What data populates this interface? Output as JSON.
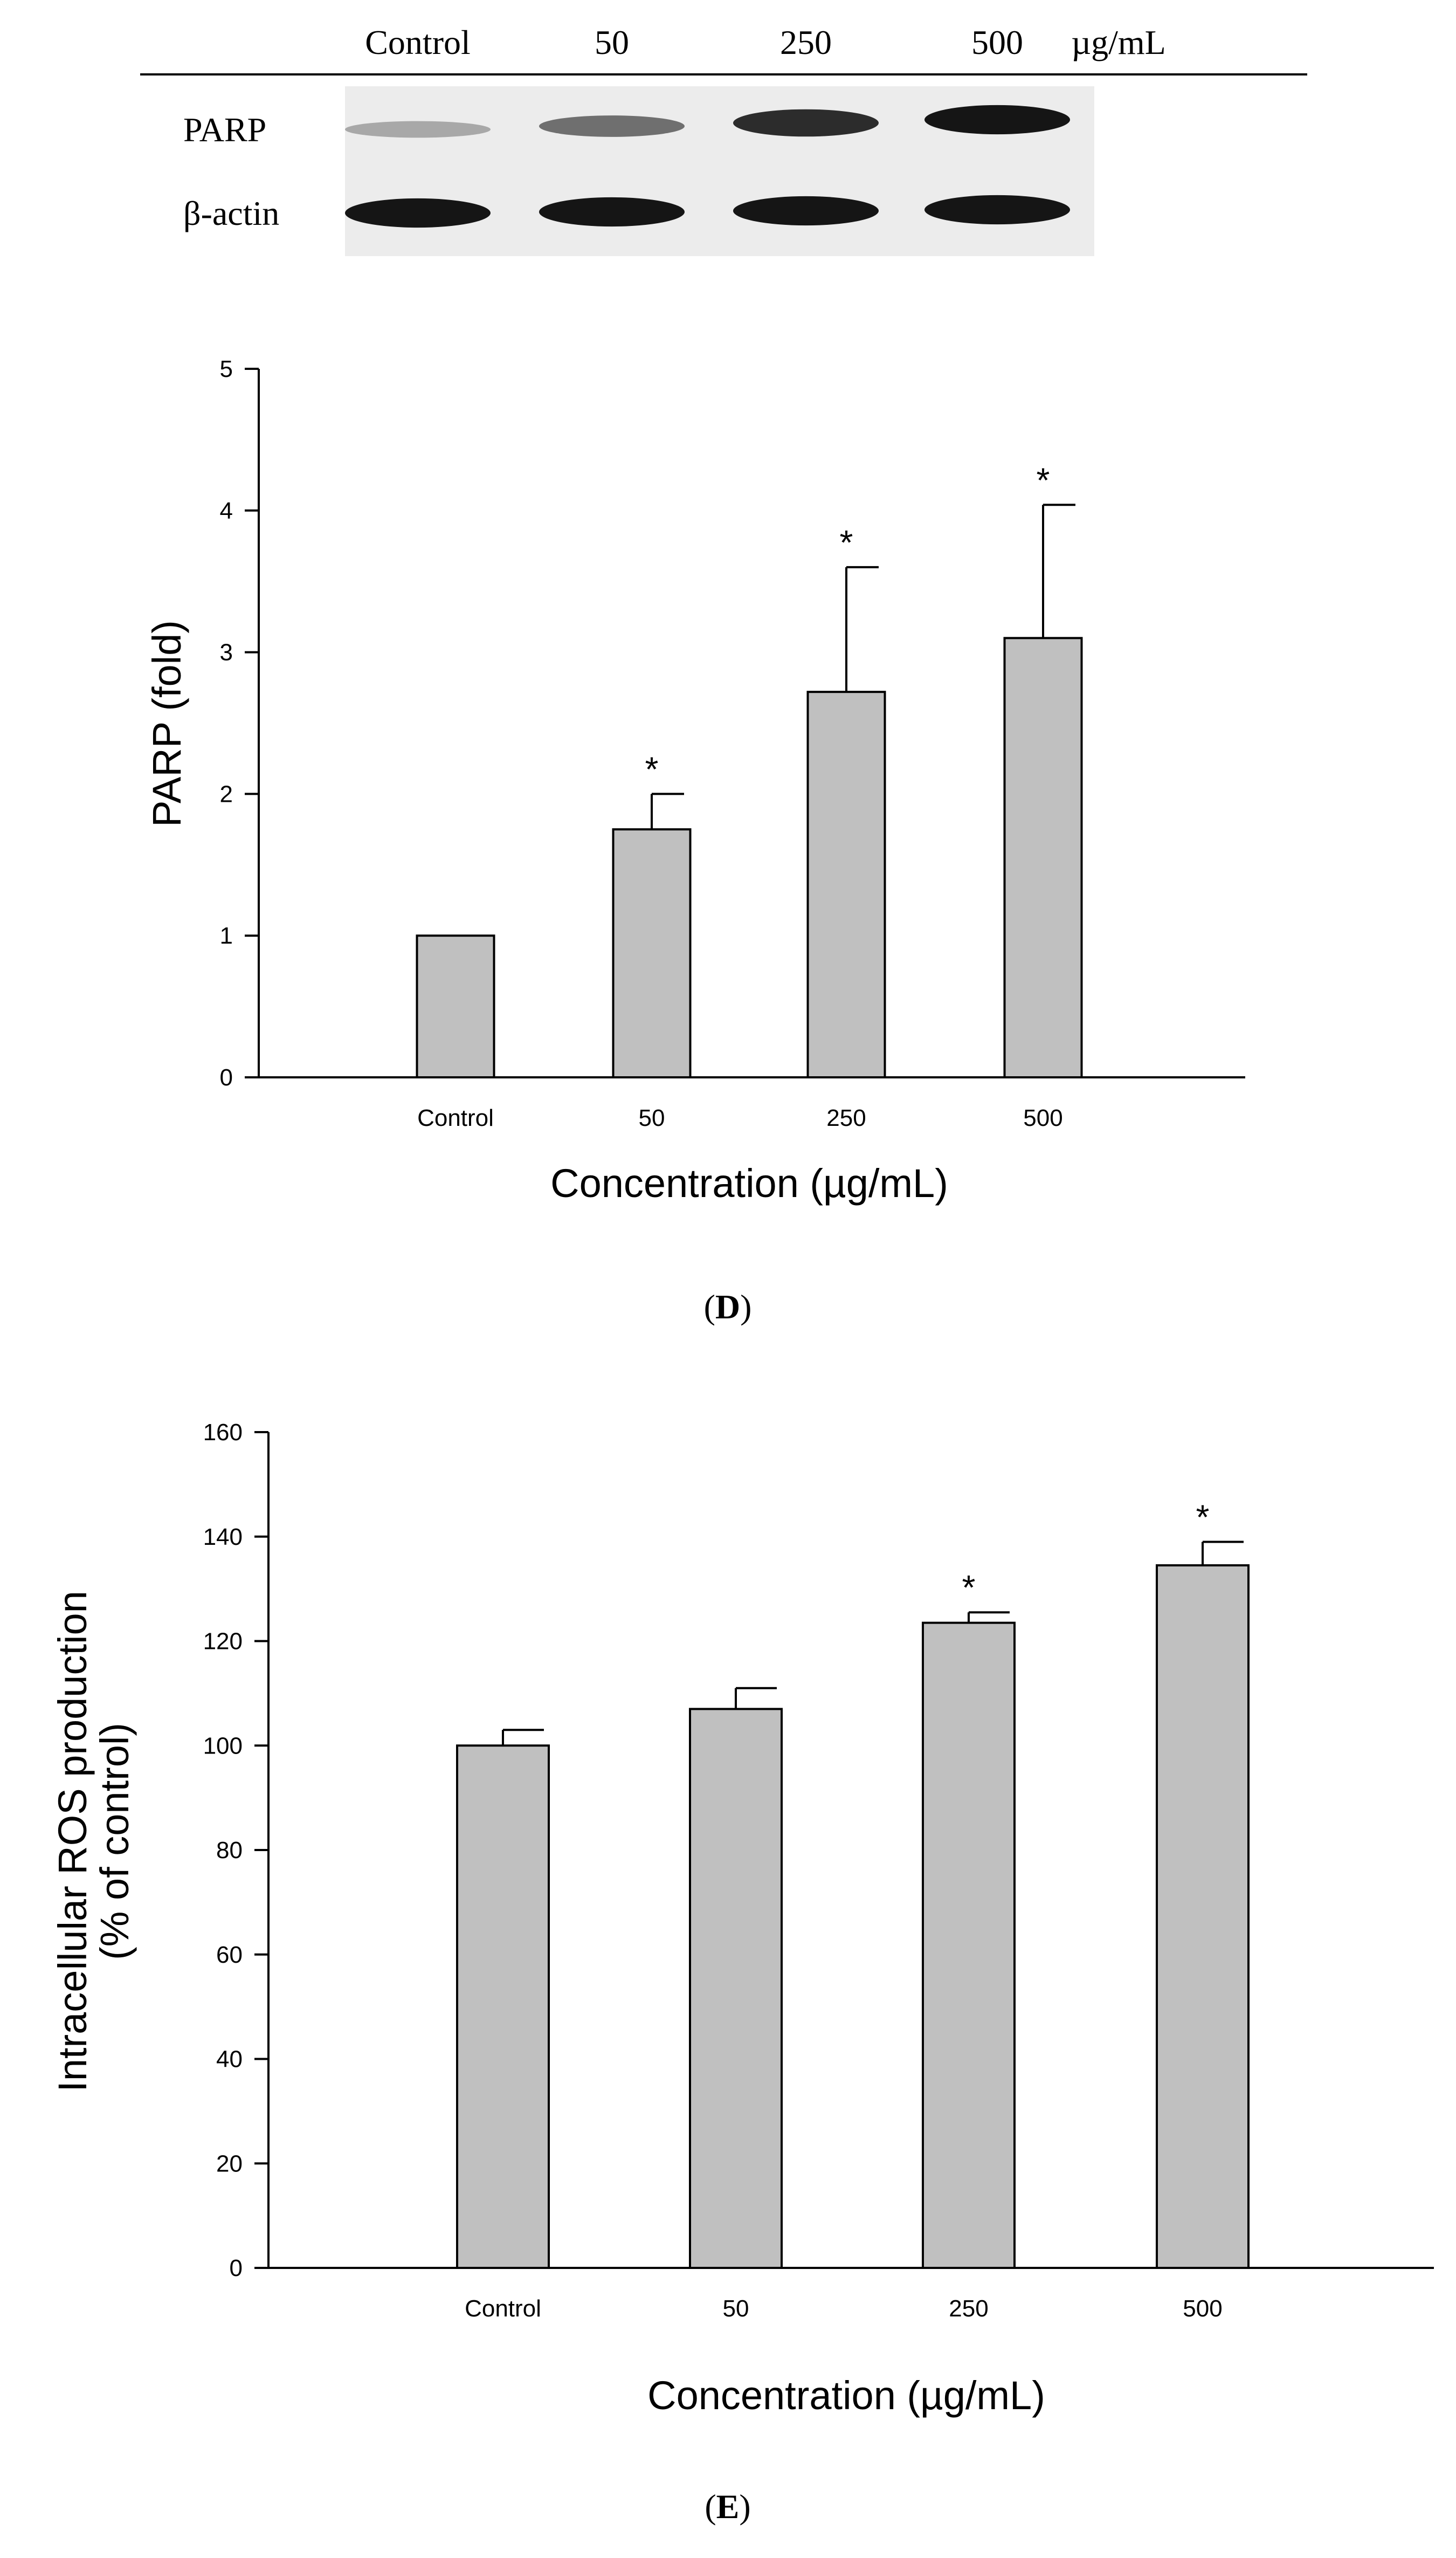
{
  "blot": {
    "lanes": [
      "Control",
      "50",
      "250",
      "500"
    ],
    "unit": "µg/mL",
    "rows": [
      {
        "label": "PARP",
        "intensity": [
          0.3,
          0.55,
          0.85,
          0.95
        ]
      },
      {
        "label": "β-actin",
        "intensity": [
          0.95,
          0.95,
          0.95,
          0.95
        ]
      }
    ]
  },
  "panel_d_label": "D",
  "panel_e_label": "E",
  "chart_data": [
    {
      "type": "bar",
      "panel": "D",
      "categories": [
        "Control",
        "50",
        "250",
        "500"
      ],
      "values": [
        1.0,
        1.75,
        2.72,
        3.1
      ],
      "errors": [
        0.0,
        0.25,
        0.88,
        0.94
      ],
      "significant": [
        false,
        true,
        true,
        true
      ],
      "significance_mark": "*",
      "xlabel": "Concentration (µg/mL)",
      "ylabel": "PARP (fold)",
      "ylim": [
        0,
        5
      ],
      "yticks": [
        "0",
        "1",
        "2",
        "3",
        "4",
        "5"
      ],
      "bar_color": "#c0c0c0"
    },
    {
      "type": "bar",
      "panel": "E",
      "categories": [
        "Control",
        "50",
        "250",
        "500"
      ],
      "values": [
        100,
        107,
        123.5,
        134.5
      ],
      "errors": [
        3,
        4,
        2,
        4.5
      ],
      "significant": [
        false,
        false,
        true,
        true
      ],
      "significance_mark": "*",
      "xlabel": "Concentration (µg/mL)",
      "ylabel": [
        "Intracellular ROS production",
        "(% of control)"
      ],
      "ylim": [
        0,
        160
      ],
      "yticks": [
        "0",
        "20",
        "40",
        "60",
        "80",
        "100",
        "120",
        "140",
        "160"
      ],
      "bar_color": "#c0c0c0"
    }
  ]
}
